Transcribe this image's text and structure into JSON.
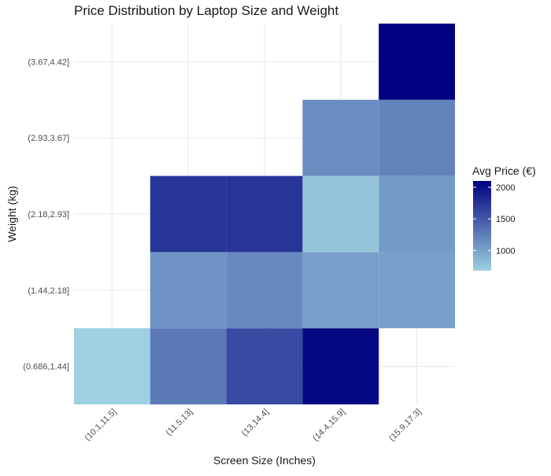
{
  "chart_data": {
    "type": "heatmap",
    "title": "Price Distribution by Laptop Size and Weight",
    "xlabel": "Screen Size (Inches)",
    "ylabel": "Weight (kg)",
    "x_categories": [
      "(10.1,11.5]",
      "(11.5,13]",
      "(13,14.4]",
      "(14.4,15.9]",
      "(15.9,17.3]"
    ],
    "y_categories": [
      "(0.686,1.44]",
      "(1.44,2.18]",
      "(2.18,2.93]",
      "(2.93,3.67]",
      "(3.67,4.42]"
    ],
    "cells": [
      {
        "x": "(10.1,11.5]",
        "y": "(0.686,1.44]",
        "value": 680
      },
      {
        "x": "(11.5,13]",
        "y": "(0.686,1.44]",
        "value": 1280
      },
      {
        "x": "(13,14.4]",
        "y": "(0.686,1.44]",
        "value": 1600
      },
      {
        "x": "(14.4,15.9]",
        "y": "(0.686,1.44]",
        "value": 2050
      },
      {
        "x": "(11.5,13]",
        "y": "(1.44,2.18]",
        "value": 1100
      },
      {
        "x": "(13,14.4]",
        "y": "(1.44,2.18]",
        "value": 1170
      },
      {
        "x": "(14.4,15.9]",
        "y": "(1.44,2.18]",
        "value": 1020
      },
      {
        "x": "(15.9,17.3]",
        "y": "(1.44,2.18]",
        "value": 1020
      },
      {
        "x": "(11.5,13]",
        "y": "(2.18,2.93]",
        "value": 1740
      },
      {
        "x": "(13,14.4]",
        "y": "(2.18,2.93]",
        "value": 1740
      },
      {
        "x": "(14.4,15.9]",
        "y": "(2.18,2.93]",
        "value": 760
      },
      {
        "x": "(15.9,17.3]",
        "y": "(2.18,2.93]",
        "value": 1050
      },
      {
        "x": "(14.4,15.9]",
        "y": "(2.93,3.67]",
        "value": 1150
      },
      {
        "x": "(15.9,17.3]",
        "y": "(2.93,3.67]",
        "value": 1220
      },
      {
        "x": "(15.9,17.3]",
        "y": "(3.67,4.42]",
        "value": 2100
      }
    ],
    "legend": {
      "title": "Avg Price (€)",
      "ticks": [
        1000,
        1500,
        2000
      ],
      "min": 680,
      "max": 2100,
      "low_color": "#9ed1e0",
      "high_color": "#000080",
      "placement": "right"
    },
    "grid": true
  }
}
